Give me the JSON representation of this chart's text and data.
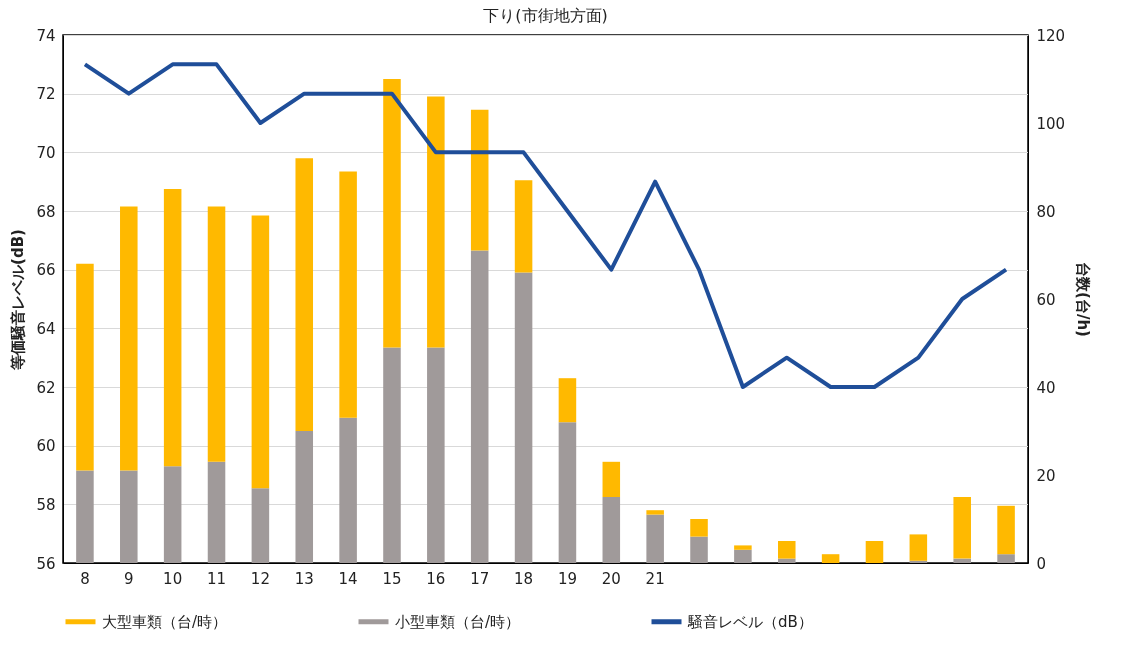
{
  "chart_data": {
    "type": "bar",
    "title": "下り(市街地方面)",
    "ylabel": "等価騒音レベル(dB)",
    "y2label": "台数(台/h)",
    "categories": [
      "8",
      "9",
      "10",
      "11",
      "12",
      "13",
      "14",
      "15",
      "16",
      "17",
      "18",
      "19",
      "20",
      "21",
      null,
      null,
      null,
      null,
      null,
      null,
      null,
      null
    ],
    "stacked": true,
    "series": [
      {
        "name": "小型車類（台/時）",
        "color": "#a09a9a",
        "axis": "y2",
        "values": [
          21,
          21,
          22,
          23,
          17,
          30,
          33,
          49,
          49,
          71,
          66,
          32,
          15,
          11,
          6,
          3,
          1,
          0,
          0,
          0.5,
          1,
          2
        ]
      },
      {
        "name": "大型車類（台/時）",
        "color": "#ffb900",
        "axis": "y2",
        "values": [
          47,
          60,
          63,
          58,
          62,
          62,
          56,
          61,
          57,
          32,
          21,
          10,
          8,
          1,
          4,
          1,
          4,
          2,
          5,
          6,
          14,
          11
        ]
      },
      {
        "name": "騒音レベル（dB）",
        "color": "#1f4e99",
        "type": "line",
        "axis": "y",
        "values": [
          73,
          72,
          73,
          73,
          71,
          72,
          72,
          72,
          70,
          70,
          70,
          68,
          66,
          69,
          66,
          62,
          63,
          62,
          62,
          63,
          65,
          66
        ]
      }
    ],
    "ylim": [
      56,
      74
    ],
    "yticks": [
      56,
      58,
      60,
      62,
      64,
      66,
      68,
      70,
      72,
      74
    ],
    "y2lim": [
      0,
      120
    ],
    "y2ticks": [
      0,
      20,
      40,
      60,
      80,
      100,
      120
    ],
    "grid": "y",
    "legend": "bottom",
    "marker": "none",
    "line_style": "solid"
  }
}
